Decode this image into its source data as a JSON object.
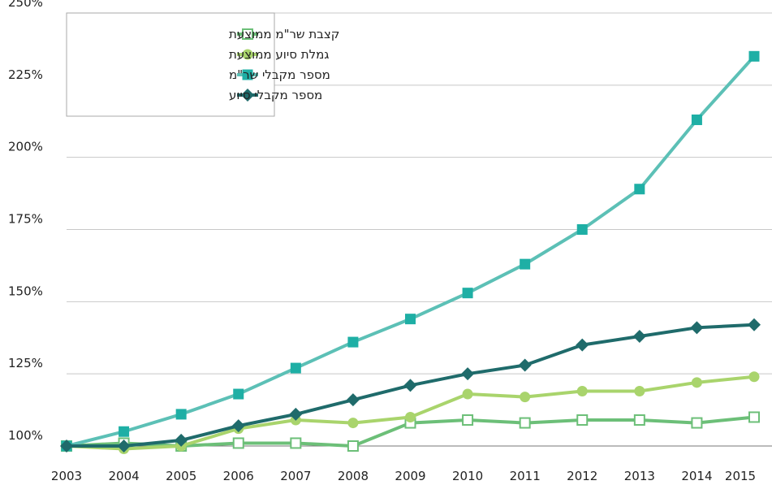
{
  "chart_data": {
    "type": "line",
    "x": [
      2003,
      2004,
      2005,
      2006,
      2007,
      2008,
      2009,
      2010,
      2011,
      2012,
      2013,
      2014,
      2015
    ],
    "series": [
      {
        "name": "קצבת שר\"מ ממוצעת",
        "color": "#6cbf78",
        "marker": "square-open",
        "values": [
          100,
          101,
          100,
          101,
          101,
          100,
          108,
          109,
          108,
          109,
          109,
          108,
          110
        ]
      },
      {
        "name": "גמלת סיוע ממוצעת",
        "color": "#a9d46c",
        "marker": "circle",
        "values": [
          100,
          99,
          100,
          106,
          109,
          108,
          110,
          118,
          117,
          119,
          119,
          122,
          124
        ]
      },
      {
        "name": "מספר מקבלי שר\"מ",
        "color": "#5cc0b6",
        "marker": "square",
        "marker_color": "#1eafa5",
        "values": [
          100,
          105,
          111,
          118,
          127,
          136,
          144,
          153,
          163,
          175,
          189,
          213,
          235
        ]
      },
      {
        "name": "מספר מקבלי סיוע",
        "color": "#1f6b6b",
        "marker": "diamond",
        "values": [
          100,
          100,
          102,
          107,
          111,
          116,
          121,
          125,
          128,
          135,
          138,
          141,
          142
        ]
      }
    ],
    "xlim": [
      2003,
      2015
    ],
    "ylim": [
      100,
      250
    ],
    "yticks": [
      {
        "value": 100,
        "label": "100%"
      },
      {
        "value": 125,
        "label": "125%"
      },
      {
        "value": 150,
        "label": "150%"
      },
      {
        "value": 175,
        "label": "175%"
      },
      {
        "value": 200,
        "label": "200%"
      },
      {
        "value": 225,
        "label": "225%"
      },
      {
        "value": 250,
        "label": "250%"
      }
    ],
    "grid": true,
    "legend": "top-left"
  }
}
